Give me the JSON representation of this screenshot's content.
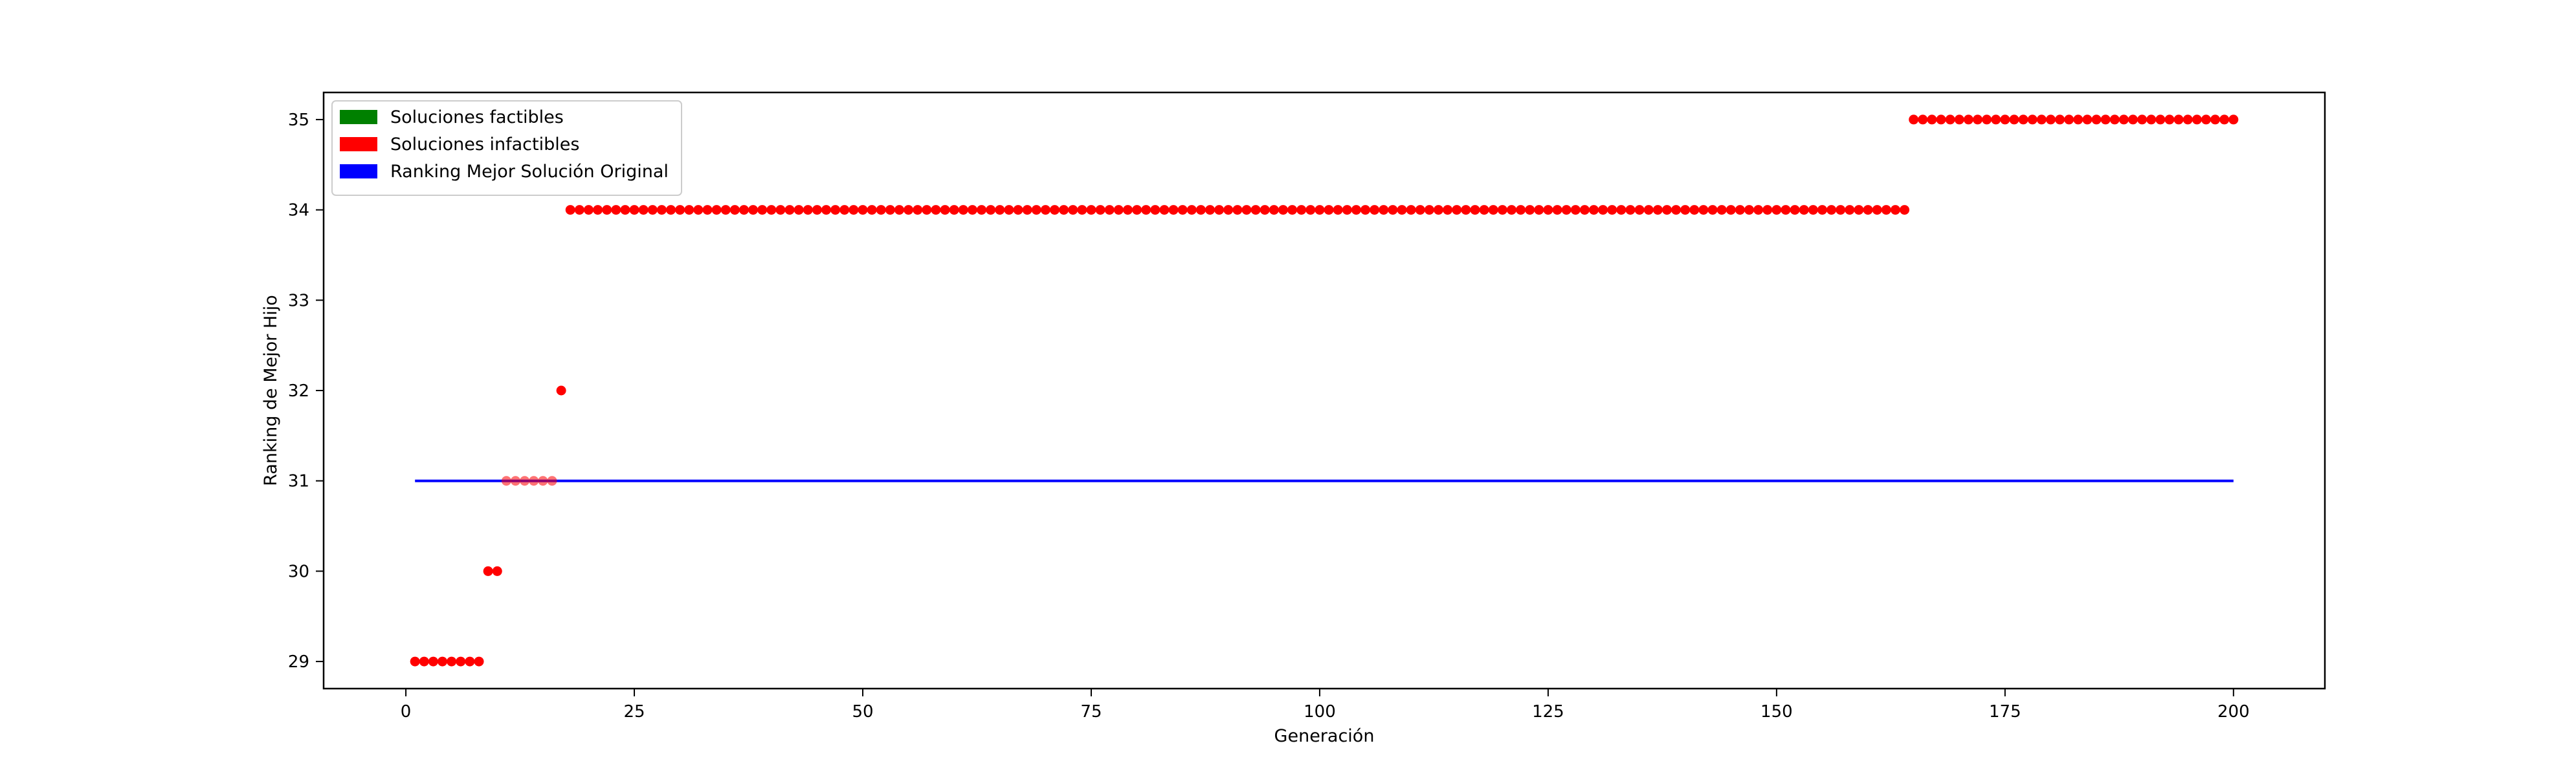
{
  "chart_data": {
    "type": "scatter",
    "title": "",
    "xlabel": "Generación",
    "ylabel": "Ranking de Mejor Hijo",
    "xlim": [
      -9,
      210
    ],
    "ylim": [
      28.7,
      35.3
    ],
    "xticks": [
      0,
      25,
      50,
      75,
      100,
      125,
      150,
      175,
      200
    ],
    "yticks": [
      29,
      30,
      31,
      32,
      33,
      34,
      35
    ],
    "grid": false,
    "legend_position": "top-left",
    "legend": [
      {
        "label": "Soluciones factibles",
        "color": "#008000"
      },
      {
        "label": "Soluciones infactibles",
        "color": "#ff0000"
      },
      {
        "label": "Ranking Mejor Solución Original",
        "color": "#0000ff"
      }
    ],
    "infeasible_segments": [
      {
        "x_start": 1,
        "x_end": 8,
        "y": 29
      },
      {
        "x_start": 9,
        "x_end": 10,
        "y": 30
      },
      {
        "x_start": 11,
        "x_end": 16,
        "y": 31
      },
      {
        "x_start": 17,
        "x_end": 17,
        "y": 32
      },
      {
        "x_start": 18,
        "x_end": 164,
        "y": 34
      },
      {
        "x_start": 165,
        "x_end": 200,
        "y": 35
      }
    ],
    "feasible_points": [],
    "reference_line": {
      "label": "Ranking Mejor Solución Original",
      "y": 31,
      "x_start": 1,
      "x_end": 200,
      "color": "#0000ff"
    },
    "point_color": "#ff0000"
  }
}
